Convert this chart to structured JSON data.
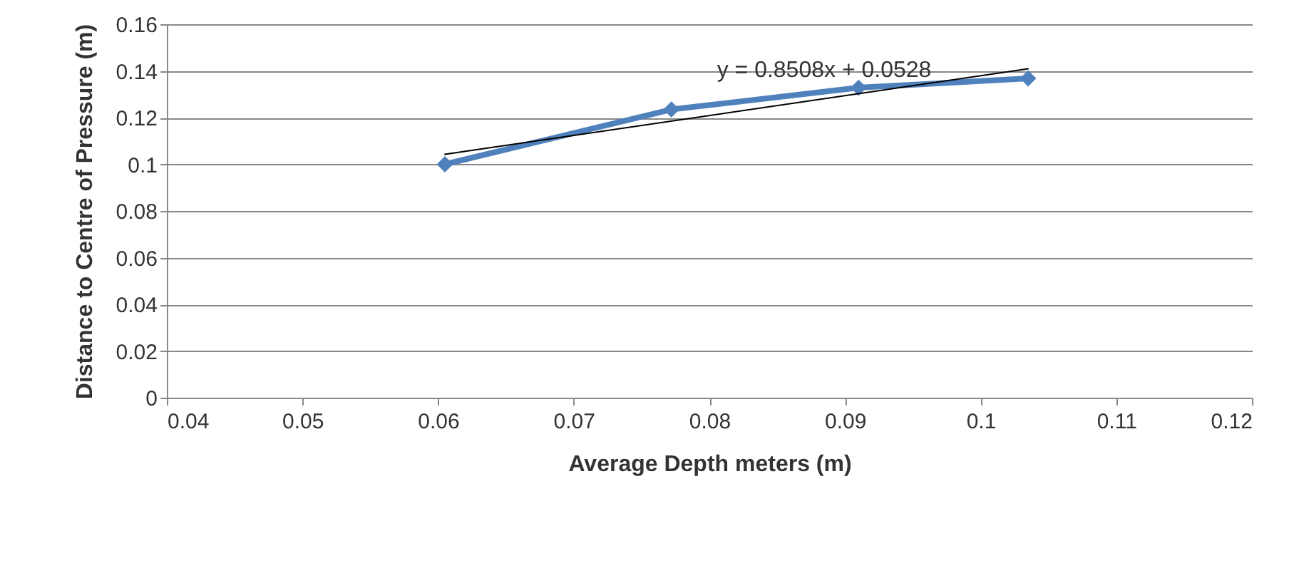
{
  "chart_data": {
    "type": "line",
    "xlabel": "Average Depth meters (m)",
    "ylabel": "Distance to Centre of Pressure (m)",
    "xlim": [
      0.04,
      0.12
    ],
    "xticks": [
      0.04,
      0.05,
      0.06,
      0.07,
      0.08,
      0.09,
      0.1,
      0.11,
      0.12
    ],
    "ylim": [
      0,
      0.16
    ],
    "yticks": [
      0,
      0.02,
      0.04,
      0.06,
      0.08,
      0.1,
      0.12,
      0.14,
      0.16
    ],
    "grid": "y",
    "marker": "diamond",
    "line_style": "solid",
    "series": [
      {
        "color": "#4f81bd",
        "x": [
          0.0605,
          0.0772,
          0.091,
          0.1035
        ],
        "values": [
          0.1,
          0.1235,
          0.1328,
          0.1368
        ]
      },
      {
        "type": "line",
        "marker": "none",
        "color": "#000000",
        "x": [
          0.0605,
          0.1035
        ],
        "values": [
          0.1043,
          0.1409
        ]
      }
    ],
    "annotations": [
      "y = 0.8508x + 0.0528"
    ]
  }
}
